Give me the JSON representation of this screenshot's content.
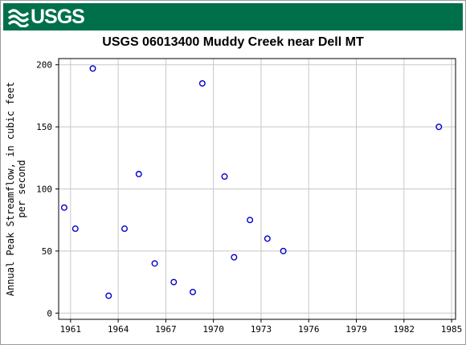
{
  "header": {
    "logo_text": "USGS",
    "brand_color": "#00704a"
  },
  "chart_data": {
    "type": "scatter",
    "title": "USGS 06013400 Muddy Creek near Dell MT",
    "xlabel": "",
    "ylabel_lines": [
      "Annual Peak Streamflow, in cubic feet",
      "per second"
    ],
    "xlim": [
      1960.25,
      1985.25
    ],
    "ylim": [
      -5,
      205
    ],
    "x_ticks": [
      1961,
      1964,
      1967,
      1970,
      1973,
      1976,
      1979,
      1982,
      1985
    ],
    "y_ticks": [
      0,
      50,
      100,
      150,
      200
    ],
    "grid": true,
    "marker_color": "#0000cc",
    "points": [
      {
        "x": 1960.6,
        "y": 85
      },
      {
        "x": 1961.3,
        "y": 68
      },
      {
        "x": 1962.4,
        "y": 197
      },
      {
        "x": 1963.4,
        "y": 14
      },
      {
        "x": 1964.4,
        "y": 68
      },
      {
        "x": 1965.3,
        "y": 112
      },
      {
        "x": 1966.3,
        "y": 40
      },
      {
        "x": 1967.5,
        "y": 25
      },
      {
        "x": 1968.7,
        "y": 17
      },
      {
        "x": 1969.3,
        "y": 185
      },
      {
        "x": 1970.7,
        "y": 110
      },
      {
        "x": 1971.3,
        "y": 45
      },
      {
        "x": 1972.3,
        "y": 75
      },
      {
        "x": 1973.4,
        "y": 60
      },
      {
        "x": 1974.4,
        "y": 50
      },
      {
        "x": 1984.2,
        "y": 150
      }
    ]
  }
}
